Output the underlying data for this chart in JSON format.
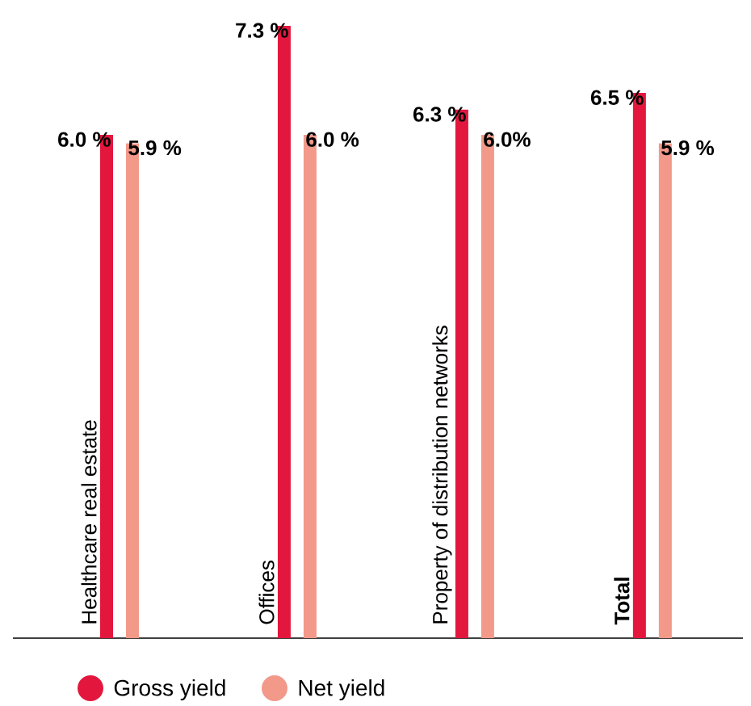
{
  "chart_data": {
    "type": "bar",
    "categories": [
      "Healthcare real estate",
      "Offices",
      "Property of distribution networks",
      "**Total**"
    ],
    "series": [
      {
        "name": "Gross yield",
        "color": "#e3173e",
        "values": [
          6.0,
          7.3,
          6.3,
          6.5
        ],
        "value_labels": [
          "6.0 %",
          "7.3 %",
          "6.3 %",
          "6.5 %"
        ]
      },
      {
        "name": "Net yield",
        "color": "#f3998a",
        "values": [
          5.9,
          6.0,
          6.0,
          5.9
        ],
        "value_labels": [
          "5.9 %",
          "6.0 %",
          "6.0%",
          "5.9 %"
        ]
      }
    ],
    "legend": "bottom left"
  }
}
